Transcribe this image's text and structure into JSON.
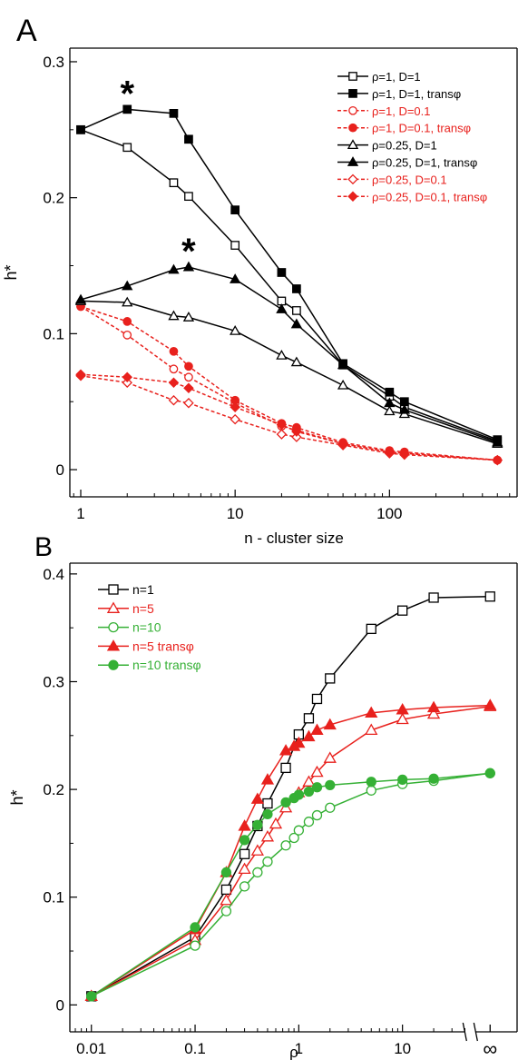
{
  "chart_data": [
    {
      "panel_label": "A",
      "type": "line",
      "xlabel": "n - cluster size",
      "ylabel": "h*",
      "x_scale": "log",
      "xlim": [
        0.85,
        680
      ],
      "ylim": [
        -0.02,
        0.31
      ],
      "x_ticks": [
        1,
        10,
        100
      ],
      "x_tick_labels": [
        "1",
        "10",
        "100"
      ],
      "y_ticks": [
        0,
        0.1,
        0.2,
        0.3
      ],
      "y_tick_labels": [
        "0",
        "0.1",
        "0.2",
        "0.3"
      ],
      "legend_position": "top-right",
      "annotations": [
        {
          "text": "*",
          "x": 2,
          "y": 0.265
        },
        {
          "text": "*",
          "x": 5,
          "y": 0.149
        }
      ],
      "series": [
        {
          "name": "ρ=1, D=1",
          "color": "#000000",
          "marker": "square",
          "filled": false,
          "dashed": false,
          "x": [
            1,
            2,
            4,
            5,
            10,
            20,
            25,
            50,
            100,
            125,
            500
          ],
          "y": [
            0.25,
            0.237,
            0.211,
            0.201,
            0.165,
            0.124,
            0.117,
            0.077,
            0.054,
            0.046,
            0.021
          ]
        },
        {
          "name": "ρ=1, D=1, transφ",
          "color": "#000000",
          "marker": "square",
          "filled": true,
          "dashed": false,
          "x": [
            1,
            2,
            4,
            5,
            10,
            20,
            25,
            50,
            100,
            125,
            500
          ],
          "y": [
            0.25,
            0.265,
            0.262,
            0.243,
            0.191,
            0.145,
            0.133,
            0.078,
            0.057,
            0.05,
            0.022
          ]
        },
        {
          "name": "ρ=1, D=0.1",
          "color": "#e8211d",
          "marker": "circle",
          "filled": false,
          "dashed": true,
          "x": [
            1,
            2,
            4,
            5,
            10,
            20,
            25,
            50,
            100,
            125,
            500
          ],
          "y": [
            0.12,
            0.099,
            0.074,
            0.068,
            0.049,
            0.032,
            0.029,
            0.019,
            0.013,
            0.012,
            0.007
          ]
        },
        {
          "name": "ρ=1, D=0.1, transφ",
          "color": "#e8211d",
          "marker": "circle",
          "filled": true,
          "dashed": true,
          "x": [
            1,
            2,
            4,
            5,
            10,
            20,
            25,
            50,
            100,
            125,
            500
          ],
          "y": [
            0.12,
            0.109,
            0.087,
            0.076,
            0.051,
            0.034,
            0.031,
            0.02,
            0.014,
            0.013,
            0.007
          ]
        },
        {
          "name": "ρ=0.25, D=1",
          "color": "#000000",
          "marker": "triangle",
          "filled": false,
          "dashed": false,
          "x": [
            1,
            2,
            4,
            5,
            10,
            20,
            25,
            50,
            100,
            125,
            500
          ],
          "y": [
            0.124,
            0.123,
            0.113,
            0.112,
            0.102,
            0.084,
            0.079,
            0.062,
            0.043,
            0.041,
            0.019
          ]
        },
        {
          "name": "ρ=0.25, D=1, transφ",
          "color": "#000000",
          "marker": "triangle",
          "filled": true,
          "dashed": false,
          "x": [
            1,
            2,
            4,
            5,
            10,
            20,
            25,
            50,
            100,
            125,
            500
          ],
          "y": [
            0.125,
            0.135,
            0.147,
            0.149,
            0.14,
            0.118,
            0.107,
            0.077,
            0.049,
            0.044,
            0.02
          ]
        },
        {
          "name": "ρ=0.25, D=0.1",
          "color": "#e8211d",
          "marker": "diamond",
          "filled": false,
          "dashed": true,
          "x": [
            1,
            2,
            4,
            5,
            10,
            20,
            25,
            50,
            100,
            125,
            500
          ],
          "y": [
            0.069,
            0.064,
            0.051,
            0.049,
            0.037,
            0.026,
            0.024,
            0.018,
            0.012,
            0.011,
            0.007
          ]
        },
        {
          "name": "ρ=0.25, D=0.1, transφ",
          "color": "#e8211d",
          "marker": "diamond",
          "filled": true,
          "dashed": true,
          "x": [
            1,
            2,
            4,
            5,
            10,
            20,
            25,
            50,
            100,
            125,
            500
          ],
          "y": [
            0.07,
            0.068,
            0.064,
            0.06,
            0.046,
            0.033,
            0.028,
            0.019,
            0.013,
            0.012,
            0.007
          ]
        }
      ]
    },
    {
      "panel_label": "B",
      "type": "line",
      "xlabel": "ρ",
      "ylabel": "h*",
      "x_scale": "log",
      "xlim": [
        0.0062,
        130
      ],
      "ylim": [
        -0.025,
        0.41
      ],
      "x_ticks": [
        0.01,
        0.1,
        1,
        10
      ],
      "x_tick_labels": [
        "0.01",
        "0.1",
        "1",
        "10"
      ],
      "infinity_tick_label": "∞",
      "infinity_position": 70,
      "y_ticks": [
        0,
        0.1,
        0.2,
        0.3,
        0.4
      ],
      "y_tick_labels": [
        "0",
        "0.1",
        "0.2",
        "0.3",
        "0.4"
      ],
      "legend_position": "top-left",
      "series": [
        {
          "name": "n=1",
          "color": "#000000",
          "marker": "square",
          "filled": false,
          "x": [
            0.01,
            0.1,
            0.2,
            0.3,
            0.4,
            0.5,
            0.75,
            1,
            1.25,
            1.5,
            2,
            5,
            10,
            20,
            70
          ],
          "y": [
            0.008,
            0.063,
            0.107,
            0.14,
            0.166,
            0.187,
            0.22,
            0.251,
            0.266,
            0.284,
            0.303,
            0.349,
            0.366,
            0.378,
            0.379
          ]
        },
        {
          "name": "n=5",
          "color": "#e8211d",
          "marker": "triangle",
          "filled": false,
          "x": [
            0.01,
            0.1,
            0.2,
            0.3,
            0.4,
            0.5,
            0.6,
            0.75,
            1,
            1.25,
            1.5,
            2,
            5,
            10,
            20,
            70
          ],
          "y": [
            0.008,
            0.06,
            0.097,
            0.126,
            0.143,
            0.156,
            0.168,
            0.183,
            0.197,
            0.207,
            0.216,
            0.229,
            0.255,
            0.265,
            0.27,
            0.277
          ]
        },
        {
          "name": "n=10",
          "color": "#35b035",
          "marker": "circle",
          "filled": false,
          "x": [
            0.01,
            0.1,
            0.2,
            0.3,
            0.4,
            0.5,
            0.75,
            0.9,
            1,
            1.25,
            1.5,
            2,
            5,
            10,
            20,
            70
          ],
          "y": [
            0.008,
            0.055,
            0.087,
            0.11,
            0.123,
            0.133,
            0.148,
            0.155,
            0.162,
            0.17,
            0.176,
            0.183,
            0.199,
            0.205,
            0.208,
            0.215
          ]
        },
        {
          "name": "n=5 transφ",
          "color": "#e8211d",
          "marker": "triangle",
          "filled": true,
          "x": [
            0.01,
            0.1,
            0.2,
            0.3,
            0.4,
            0.5,
            0.75,
            0.9,
            1,
            1.25,
            1.5,
            2,
            5,
            10,
            20,
            70
          ],
          "y": [
            0.008,
            0.07,
            0.123,
            0.166,
            0.191,
            0.209,
            0.236,
            0.24,
            0.243,
            0.249,
            0.255,
            0.26,
            0.271,
            0.274,
            0.276,
            0.278
          ]
        },
        {
          "name": "n=10 transφ",
          "color": "#35b035",
          "marker": "circle",
          "filled": true,
          "x": [
            0.01,
            0.1,
            0.2,
            0.3,
            0.4,
            0.5,
            0.75,
            0.9,
            1,
            1.25,
            1.5,
            2,
            5,
            10,
            20,
            70
          ],
          "y": [
            0.008,
            0.072,
            0.123,
            0.153,
            0.167,
            0.177,
            0.188,
            0.192,
            0.195,
            0.198,
            0.202,
            0.204,
            0.207,
            0.209,
            0.21,
            0.215
          ]
        }
      ]
    }
  ]
}
